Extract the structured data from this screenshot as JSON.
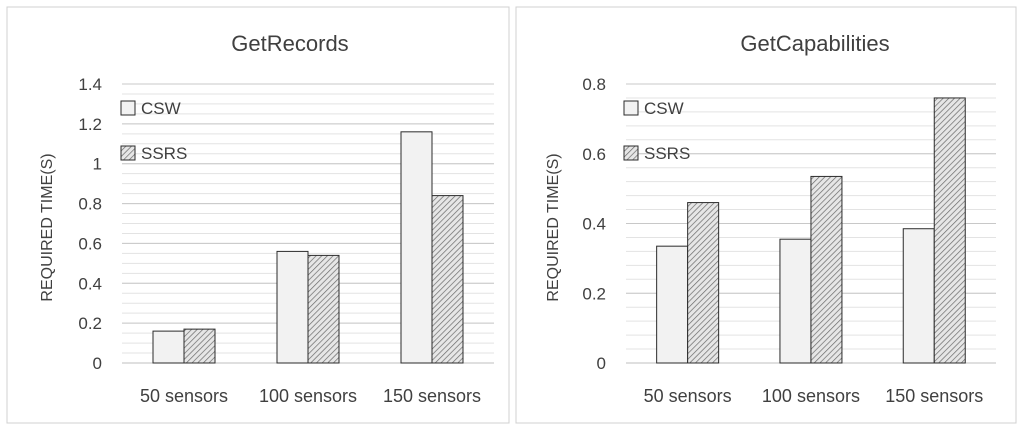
{
  "chart_data": [
    {
      "type": "bar",
      "title": "GetRecords",
      "ylabel": "REQUIRED TIME(S)",
      "xlabel": "",
      "categories": [
        "50 sensors",
        "100 sensors",
        "150 sensors"
      ],
      "ylim": [
        0,
        1.4
      ],
      "yticks": [
        "0",
        "0.2",
        "0.4",
        "0.6",
        "0.8",
        "1",
        "1.2",
        "1.4"
      ],
      "minor_grid_step": 0.05,
      "legend_position": "top-left",
      "series": [
        {
          "name": "CSW",
          "values": [
            0.16,
            0.56,
            1.16
          ],
          "fill": "#f2f2f2"
        },
        {
          "name": "SSRS",
          "values": [
            0.17,
            0.54,
            0.84
          ],
          "fill": "hatched"
        }
      ]
    },
    {
      "type": "bar",
      "title": "GetCapabilities",
      "ylabel": "REQUIRED TIME(S)",
      "xlabel": "",
      "categories": [
        "50 sensors",
        "100 sensors",
        "150 sensors"
      ],
      "ylim": [
        0,
        0.8
      ],
      "yticks": [
        "0",
        "0.2",
        "0.4",
        "0.6",
        "0.8"
      ],
      "minor_grid_step": 0.04,
      "legend_position": "top-left",
      "series": [
        {
          "name": "CSW",
          "values": [
            0.335,
            0.355,
            0.385
          ],
          "fill": "#f2f2f2"
        },
        {
          "name": "SSRS",
          "values": [
            0.46,
            0.535,
            0.76
          ],
          "fill": "hatched"
        }
      ]
    }
  ]
}
